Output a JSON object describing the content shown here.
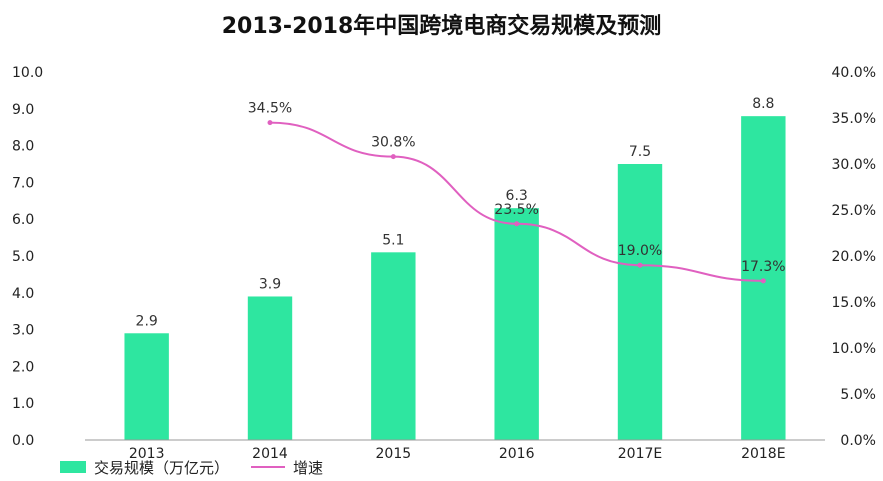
{
  "chart_data": {
    "type": "bar",
    "title": "2013-2018年中国跨境电商交易规模及预测",
    "categories": [
      "2013",
      "2014",
      "2015",
      "2016",
      "2017E",
      "2018E"
    ],
    "series": [
      {
        "name": "交易规模（万亿元）",
        "kind": "bar",
        "axis": "left",
        "values": [
          2.9,
          3.9,
          5.1,
          6.3,
          7.5,
          8.8
        ],
        "color": "#2ee6a0"
      },
      {
        "name": "增速",
        "kind": "line",
        "axis": "right",
        "values": [
          null,
          34.5,
          30.8,
          23.5,
          19.0,
          17.3
        ],
        "color": "#e060c0"
      }
    ],
    "bar_labels": [
      "2.9",
      "3.9",
      "5.1",
      "6.3",
      "7.5",
      "8.8"
    ],
    "line_labels": [
      "",
      "34.5%",
      "30.8%",
      "23.5%",
      "19.0%",
      "17.3%"
    ],
    "y_left": {
      "min": 0,
      "max": 10,
      "ticks": [
        "0.0",
        "1.0",
        "2.0",
        "3.0",
        "4.0",
        "5.0",
        "6.0",
        "7.0",
        "8.0",
        "9.0",
        "10.0"
      ]
    },
    "y_right": {
      "min": 0,
      "max": 40,
      "ticks": [
        "0.0%",
        "5.0%",
        "10.0%",
        "15.0%",
        "20.0%",
        "25.0%",
        "30.0%",
        "35.0%",
        "40.0%"
      ]
    },
    "legend_placement": "bottom-left",
    "grid": false
  }
}
